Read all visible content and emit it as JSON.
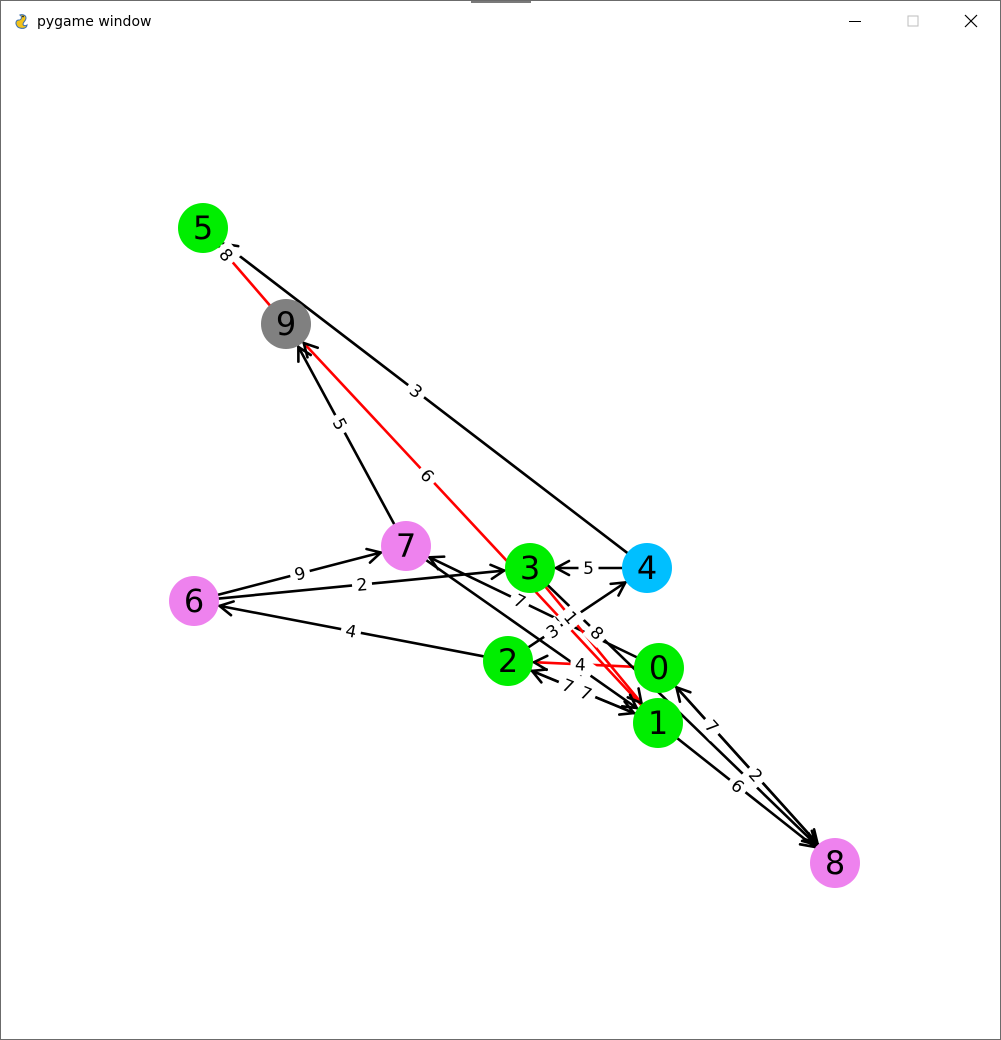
{
  "window": {
    "title": "pygame window",
    "icon": "pygame-snake-icon",
    "controls": {
      "minimize_icon": "minimize-icon",
      "maximize_icon": "maximize-icon",
      "close_icon": "close-icon"
    }
  },
  "graph": {
    "colors": {
      "green": "#00ee00",
      "violet": "#ee82ee",
      "blue": "#00bfff",
      "gray": "#808080",
      "edge": "#000000",
      "highlight": "#ff0000"
    },
    "nodes": [
      {
        "id": "0",
        "color": "#00ee00"
      },
      {
        "id": "1",
        "color": "#00ee00"
      },
      {
        "id": "2",
        "color": "#00ee00"
      },
      {
        "id": "3",
        "color": "#00ee00"
      },
      {
        "id": "4",
        "color": "#00bfff"
      },
      {
        "id": "5",
        "color": "#00ee00"
      },
      {
        "id": "6",
        "color": "#ee82ee"
      },
      {
        "id": "7",
        "color": "#ee82ee"
      },
      {
        "id": "8",
        "color": "#ee82ee"
      },
      {
        "id": "9",
        "color": "#808080"
      }
    ],
    "edges": [
      {
        "from": "9",
        "to": "5",
        "weight": "8",
        "highlight": true
      },
      {
        "from": "1",
        "to": "9",
        "weight": "6",
        "highlight": true
      },
      {
        "from": "4",
        "to": "5",
        "weight": "3",
        "highlight": false
      },
      {
        "from": "7",
        "to": "9",
        "weight": "5",
        "highlight": false
      },
      {
        "from": "6",
        "to": "7",
        "weight": "9",
        "highlight": false
      },
      {
        "from": "6",
        "to": "3",
        "weight": "2",
        "highlight": false
      },
      {
        "from": "2",
        "to": "6",
        "weight": "4",
        "highlight": false
      },
      {
        "from": "4",
        "to": "3",
        "weight": "5",
        "highlight": false
      },
      {
        "from": "2",
        "to": "4",
        "weight": "3",
        "highlight": false
      },
      {
        "from": "0",
        "to": "7",
        "weight": "7",
        "highlight": false
      },
      {
        "from": "7",
        "to": "1",
        "weight": "4",
        "highlight": false
      },
      {
        "from": "0",
        "to": "2",
        "weight": "4",
        "highlight": true
      },
      {
        "from": "1",
        "to": "2",
        "weight": "7",
        "highlight": false
      },
      {
        "from": "2",
        "to": "1",
        "weight": "7",
        "highlight": false
      },
      {
        "from": "3",
        "to": "1",
        "weight": "1",
        "highlight": true
      },
      {
        "from": "3",
        "to": "8",
        "weight": "8",
        "highlight": false
      },
      {
        "from": "8",
        "to": "0",
        "weight": "7",
        "highlight": false
      },
      {
        "from": "0",
        "to": "8",
        "weight": "2",
        "highlight": false
      },
      {
        "from": "1",
        "to": "8",
        "weight": "6",
        "highlight": false
      }
    ]
  }
}
